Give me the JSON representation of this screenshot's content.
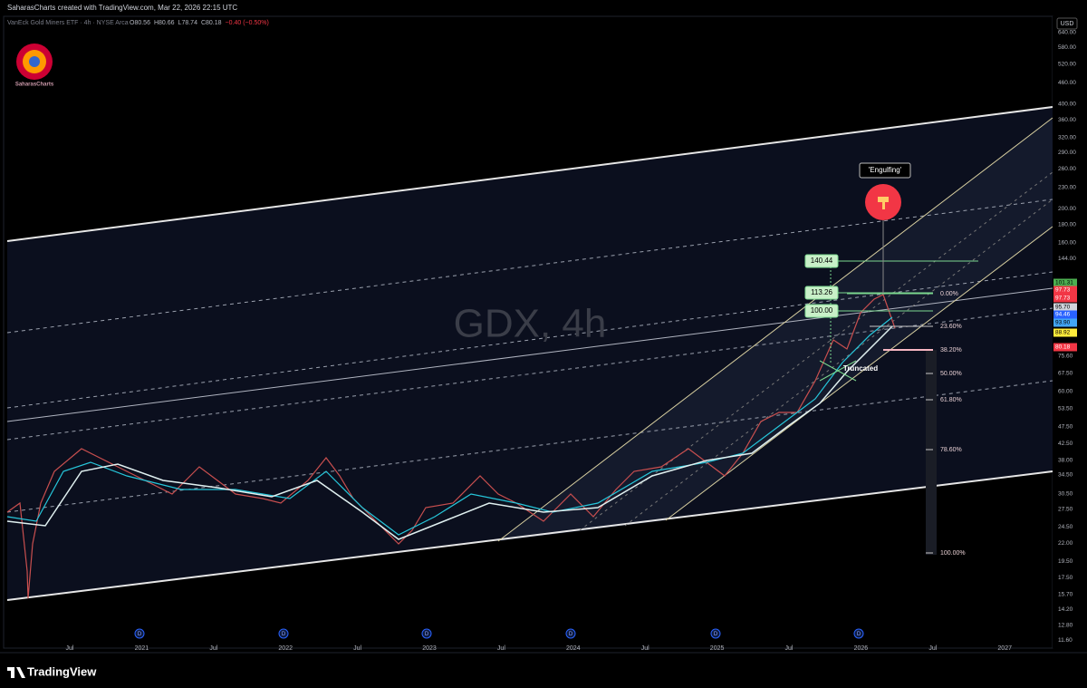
{
  "header": {
    "credit": "SaharasCharts created with TradingView.com, Mar 22, 2026 22:15 UTC",
    "symbol": "VanEck Gold Miners ETF · 4h · NYSE Arca",
    "ohlc": [
      "O80.56",
      "H80.66",
      "L78.74",
      "C80.18",
      "−0.40 (−0.50%)"
    ]
  },
  "logo": "SaharasCharts",
  "watermark": "GDX, 4h",
  "annotations": {
    "pattern": "'Engulfing'",
    "wave": "Truncated",
    "targets": [
      "140.44",
      "113.26",
      "100.00"
    ]
  },
  "fib_levels": [
    "0.00%",
    "23.60%",
    "38.20%",
    "50.00%",
    "61.80%",
    "78.60%",
    "100.00%"
  ],
  "price_axis": {
    "currency": "USD",
    "labels": [
      "640.00",
      "580.00",
      "520.00",
      "460.00",
      "400.00",
      "360.00",
      "320.00",
      "290.00",
      "260.00",
      "230.00",
      "200.00",
      "180.00",
      "160.00",
      "144.00",
      "75.60",
      "67.50",
      "60.00",
      "53.50",
      "47.50",
      "42.50",
      "38.00",
      "34.50",
      "30.50",
      "27.50",
      "24.50",
      "22.00",
      "19.50",
      "17.50",
      "15.70",
      "14.20",
      "12.80",
      "11.60"
    ]
  },
  "price_tags": [
    {
      "text": "101.31",
      "color": "#4caf50"
    },
    {
      "text": "97.73",
      "color": "#f23645"
    },
    {
      "text": "97.73",
      "color": "#f23645"
    },
    {
      "text": "95.70",
      "color": "#d1d4dc"
    },
    {
      "text": "94.46",
      "color": "#2962ff"
    },
    {
      "text": "93.90",
      "color": "#42a5f5"
    },
    {
      "text": "88.92",
      "color": "#ffeb3b"
    },
    {
      "text": "80.18",
      "color": "#f23645"
    }
  ],
  "time_axis": [
    "Jul",
    "2021",
    "Jul",
    "2022",
    "Jul",
    "2023",
    "Jul",
    "2024",
    "Jul",
    "2025",
    "Jul",
    "2026",
    "Jul",
    "2027"
  ],
  "dividend_marker": "D",
  "footer": "TradingView"
}
